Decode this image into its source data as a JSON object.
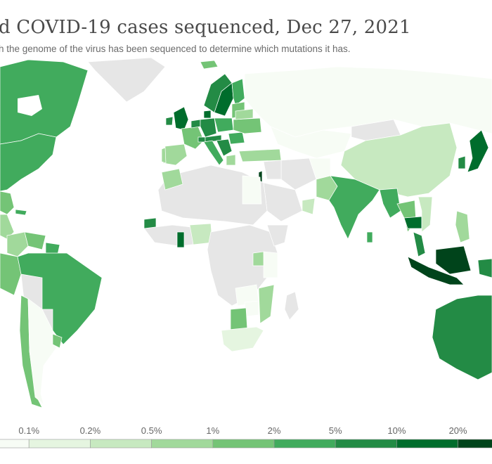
{
  "title": "d COVID-19 cases sequenced, Dec 27, 2021",
  "subtitle": "h the genome of the virus has been sequenced to determine which mutations it has.",
  "legend": {
    "ticks": [
      "0.1%",
      "0.2%",
      "0.5%",
      "1%",
      "2%",
      "5%",
      "10%",
      "20%"
    ],
    "colors": [
      "#f7fcf5",
      "#e5f5e0",
      "#c7e9c0",
      "#a1d99b",
      "#74c476",
      "#41ab5d",
      "#238b45",
      "#006d2c",
      "#00441b"
    ],
    "no_data_color": "#e6e6e6"
  }
}
